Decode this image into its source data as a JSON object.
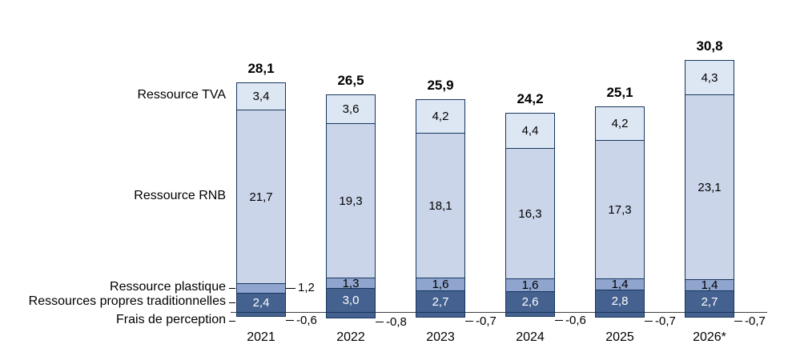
{
  "chart_data": {
    "type": "bar",
    "stacked": true,
    "title": "",
    "unit_format": "decimal-comma",
    "categories": [
      "2021",
      "2022",
      "2023",
      "2024",
      "2025",
      "2026*"
    ],
    "totals": {
      "values": [
        28.1,
        26.5,
        25.9,
        24.2,
        25.1,
        30.8
      ],
      "labels": [
        "28,1",
        "26,5",
        "25,9",
        "24,2",
        "25,1",
        "30,8"
      ]
    },
    "series": [
      {
        "name": "Ressources propres traditionnelles",
        "values": [
          2.4,
          3.0,
          2.7,
          2.6,
          2.8,
          2.7
        ],
        "labels": [
          "2,4",
          "3,0",
          "2,7",
          "2,6",
          "2,8",
          "2,7"
        ],
        "color": "#44618f",
        "text_color": "#ffffff",
        "label_position": "inside"
      },
      {
        "name": "Ressource plastique",
        "values": [
          1.2,
          1.3,
          1.6,
          1.6,
          1.4,
          1.4
        ],
        "labels": [
          "1,2",
          "1,3",
          "1,6",
          "1,6",
          "1,4",
          "1,4"
        ],
        "color": "#8fa5ce",
        "text_color": "#000000",
        "label_position": "inside",
        "first_label_outside": true
      },
      {
        "name": "Ressource RNB",
        "values": [
          21.7,
          19.3,
          18.1,
          16.3,
          17.3,
          23.1
        ],
        "labels": [
          "21,7",
          "19,3",
          "18,1",
          "16,3",
          "17,3",
          "23,1"
        ],
        "color": "#cbd5ea",
        "text_color": "#000000",
        "label_position": "inside"
      },
      {
        "name": "Ressource TVA",
        "values": [
          3.4,
          3.6,
          4.2,
          4.4,
          4.2,
          4.3
        ],
        "labels": [
          "3,4",
          "3,6",
          "4,2",
          "4,4",
          "4,2",
          "4,3"
        ],
        "color": "#dde6f3",
        "text_color": "#000000",
        "label_position": "inside"
      }
    ],
    "negative_series": {
      "name": "Frais de perception",
      "values": [
        -0.6,
        -0.8,
        -0.7,
        -0.6,
        -0.7,
        -0.7
      ],
      "labels": [
        "-0,6",
        "-0,8",
        "-0,7",
        "-0,6",
        "-0,7",
        "-0,7"
      ],
      "color": "#44618f",
      "text_color": "#ffffff",
      "label_position": "outside-right"
    },
    "left_labels": [
      {
        "text": "Ressource TVA",
        "leader": false
      },
      {
        "text": "Ressource RNB",
        "leader": false
      },
      {
        "text": "Ressource plastique",
        "leader": true
      },
      {
        "text": "Ressources propres traditionnelles",
        "leader": true
      },
      {
        "text": "Frais de perception",
        "leader": true
      }
    ],
    "colors": {
      "segment_border": "#17365d",
      "axis_line": "#404040",
      "leader_line": "#000000"
    }
  }
}
